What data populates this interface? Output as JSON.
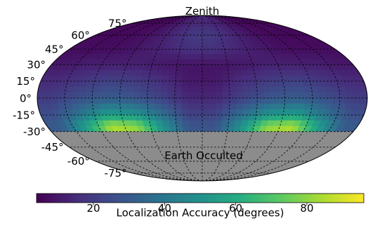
{
  "chart_data": {
    "type": "heatmap",
    "projection": "mollweide",
    "title": "Zenith",
    "annotation": "Earth Occulted",
    "latitude_ticks": [
      "75°",
      "60°",
      "45°",
      "30°",
      "15°",
      "0°",
      "-15°",
      "-30°",
      "-45°",
      "-60°",
      "-75°"
    ],
    "latitude_values": [
      75,
      60,
      45,
      30,
      15,
      0,
      -15,
      -30,
      -45,
      -60,
      -75
    ],
    "graticule_longitudes": [
      -150,
      -120,
      -90,
      -60,
      -30,
      0,
      30,
      60,
      90,
      120,
      150
    ],
    "occulted_below_latitude": -30,
    "occulted_color": "#8c8c8c",
    "colormap": "viridis",
    "colorbar": {
      "label": "Localization Accuracy (degrees)",
      "range": [
        4,
        96
      ],
      "ticks": [
        20,
        40,
        60,
        80
      ],
      "tick_labels": [
        "20",
        "40",
        "60",
        "80"
      ]
    },
    "value_grid": {
      "latitudes": [
        75,
        60,
        45,
        30,
        15,
        0,
        -15,
        -25
      ],
      "longitudes": [
        -165,
        -135,
        -105,
        -75,
        -45,
        -15,
        15,
        45,
        75,
        105,
        135,
        165
      ],
      "values": [
        [
          6,
          6,
          6,
          8,
          12,
          14,
          14,
          12,
          8,
          6,
          6,
          6
        ],
        [
          6,
          6,
          7,
          10,
          15,
          20,
          20,
          15,
          10,
          7,
          6,
          6
        ],
        [
          7,
          7,
          8,
          11,
          14,
          17,
          17,
          14,
          11,
          8,
          7,
          7
        ],
        [
          10,
          12,
          12,
          12,
          10,
          9,
          9,
          10,
          12,
          12,
          12,
          10
        ],
        [
          15,
          18,
          22,
          20,
          16,
          10,
          10,
          16,
          20,
          22,
          18,
          15
        ],
        [
          20,
          26,
          30,
          28,
          22,
          14,
          14,
          22,
          28,
          30,
          26,
          20
        ],
        [
          26,
          40,
          55,
          52,
          38,
          22,
          22,
          38,
          52,
          55,
          40,
          26
        ],
        [
          30,
          55,
          85,
          80,
          50,
          28,
          28,
          50,
          80,
          85,
          55,
          30
        ]
      ]
    }
  }
}
